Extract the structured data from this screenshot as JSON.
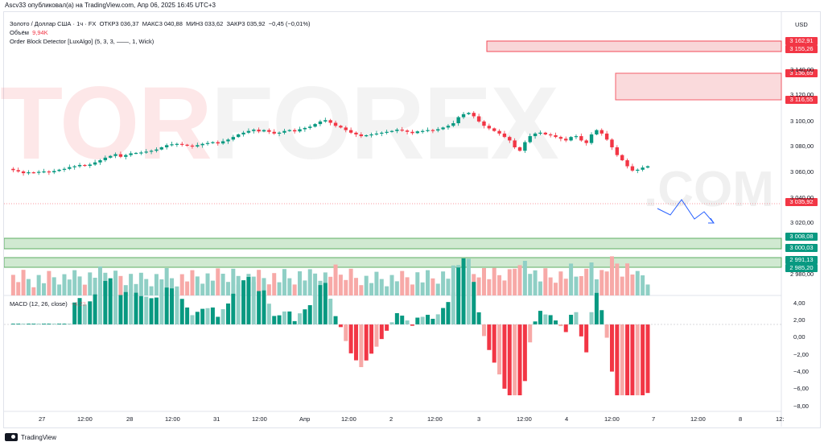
{
  "header": {
    "published_by": "Ascv33 опубликовал(а) на TradingView.com, Апр 06, 2025 16:45 UTC+3"
  },
  "legend": {
    "symbol": "Золото / Доллар США · 1ч · FX",
    "open": "ОТКР3 036,37",
    "high": "МАКС3 040,88",
    "low": "МИН3 033,62",
    "close": "ЗАКР3 035,92",
    "change": "−0,45 (−0,01%)",
    "volume_label": "Объём",
    "volume_value": "9,94K",
    "indicator": "Order Block Detector [LuxAlgo] (5, 3, 3, ——, 1, Wick)",
    "macd_label": "MACD (12, 26, close)",
    "macd_value": "−4,23"
  },
  "watermark": {
    "main_a": "TOR",
    "main_b": "FOREX",
    "sub": ".COM"
  },
  "price_axis": {
    "currency": "USD",
    "ticks": [
      "3 140,00",
      "3 120,00",
      "3 100,00",
      "3 080,00",
      "3 060,00",
      "3 040,00",
      "3 020,00",
      "2 980,00"
    ],
    "tags": [
      {
        "text": "3 162,91",
        "color": "#f23645"
      },
      {
        "text": "3 155,26",
        "color": "#f23645"
      },
      {
        "text": "3 136,69",
        "color": "#f23645"
      },
      {
        "text": "3 116,55",
        "color": "#f23645"
      },
      {
        "text": "3 035,92",
        "color": "#f23645"
      },
      {
        "text": "3 008,08",
        "color": "#089981"
      },
      {
        "text": "3 000,03",
        "color": "#089981"
      },
      {
        "text": "2 991,13",
        "color": "#089981"
      },
      {
        "text": "2 985,20",
        "color": "#089981"
      }
    ]
  },
  "macd_axis": {
    "ticks": [
      "4,00",
      "2,00",
      "0,00",
      "−2,00",
      "−4,00",
      "−6,00",
      "−8,00"
    ]
  },
  "time_axis": {
    "labels": [
      "27",
      "12:00",
      "28",
      "12:00",
      "31",
      "12:00",
      "Апр",
      "12:00",
      "2",
      "12:00",
      "3",
      "12:00",
      "4",
      "12:00",
      "7",
      "12:00",
      "8",
      "12:"
    ]
  },
  "footer": {
    "brand": "TradingView"
  },
  "colors": {
    "bull": "#089981",
    "bear": "#f23645",
    "bull_vol": "#8fcfc5",
    "bear_vol": "#f7a9a7",
    "ob_bear_fill": "#f9d2d4",
    "ob_bull_fill": "#c8e6c9"
  }
}
